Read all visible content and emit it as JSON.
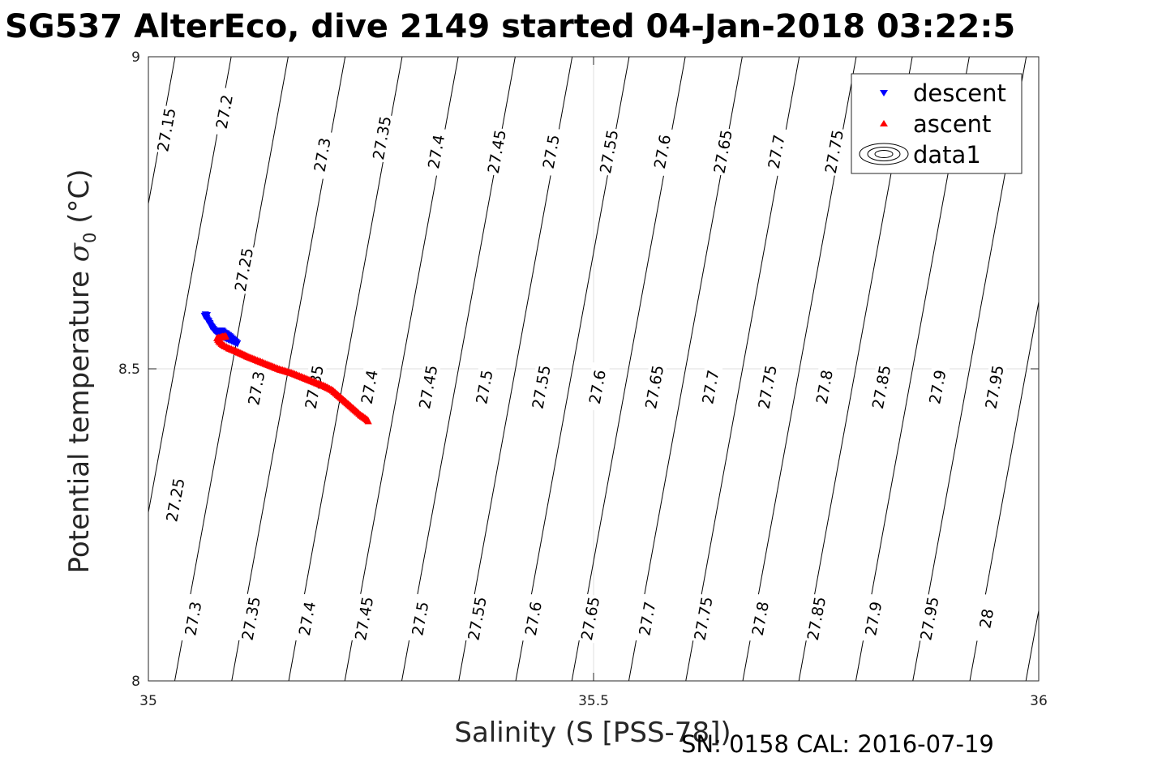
{
  "chart_data": {
    "type": "scatter",
    "title": "SG537 AlterEco, dive 2149 started 04-Jan-2018 03:22:5",
    "xlabel": "Salinity (S [PSS-78])",
    "ylabel_main": "Potential temperature ",
    "ylabel_sigma": "σ",
    "ylabel_sub": "0",
    "ylabel_unit": " (°C)",
    "footer": "SN: 0158  CAL: 2016-07-19",
    "xlim": [
      35,
      36
    ],
    "ylim": [
      8,
      9
    ],
    "xticks": [
      35,
      35.5,
      36
    ],
    "xtick_labels": [
      "35",
      "35.5",
      "36"
    ],
    "yticks": [
      8,
      8.5,
      9
    ],
    "ytick_labels": [
      "8",
      "8.5",
      "9"
    ],
    "grid": true,
    "legend": {
      "position": "top-right",
      "entries": [
        {
          "label": "descent",
          "marker": "triangle-down",
          "color": "#0000ff"
        },
        {
          "label": "ascent",
          "marker": "triangle-up",
          "color": "#ff0000"
        },
        {
          "label": "data1",
          "marker": "contour",
          "color": "#000000"
        }
      ]
    },
    "contour_lines": [
      {
        "sigma": "27.15",
        "x_at_9": 35.03
      },
      {
        "sigma": "27.2",
        "x_at_9": 35.093
      },
      {
        "sigma": "27.25",
        "x_at_9": 35.157
      },
      {
        "sigma": "27.3",
        "x_at_9": 35.221
      },
      {
        "sigma": "27.35",
        "x_at_9": 35.285
      },
      {
        "sigma": "27.4",
        "x_at_9": 35.348
      },
      {
        "sigma": "27.45",
        "x_at_9": 35.412
      },
      {
        "sigma": "27.5",
        "x_at_9": 35.476
      },
      {
        "sigma": "27.55",
        "x_at_9": 35.54
      },
      {
        "sigma": "27.6",
        "x_at_9": 35.603
      },
      {
        "sigma": "27.65",
        "x_at_9": 35.667
      },
      {
        "sigma": "27.7",
        "x_at_9": 35.731
      },
      {
        "sigma": "27.75",
        "x_at_9": 35.795
      },
      {
        "sigma": "27.8",
        "x_at_9": 35.858
      },
      {
        "sigma": "27.85",
        "x_at_9": 35.922
      },
      {
        "sigma": "27.9",
        "x_at_9": 35.986
      },
      {
        "sigma": "27.95",
        "x_at_9": 36.05
      },
      {
        "sigma": "28",
        "x_at_9": 36.113
      },
      {
        "sigma": "28.05",
        "x_at_9": 36.177
      }
    ],
    "contour_labels": [
      {
        "text": "27.15",
        "x": 35.02,
        "y": 8.883
      },
      {
        "text": "27.2",
        "x": 35.085,
        "y": 8.912
      },
      {
        "text": "27.25",
        "x": 35.107,
        "y": 8.659
      },
      {
        "text": "27.3",
        "x": 35.195,
        "y": 8.843
      },
      {
        "text": "27.35",
        "x": 35.262,
        "y": 8.87
      },
      {
        "text": "27.4",
        "x": 35.323,
        "y": 8.848
      },
      {
        "text": "27.45",
        "x": 35.391,
        "y": 8.848
      },
      {
        "text": "27.5",
        "x": 35.452,
        "y": 8.848
      },
      {
        "text": "27.55",
        "x": 35.517,
        "y": 8.848
      },
      {
        "text": "27.6",
        "x": 35.577,
        "y": 8.848
      },
      {
        "text": "27.65",
        "x": 35.645,
        "y": 8.848
      },
      {
        "text": "27.7",
        "x": 35.705,
        "y": 8.848
      },
      {
        "text": "27.75",
        "x": 35.77,
        "y": 8.848
      },
      {
        "text": "27.3",
        "x": 35.121,
        "y": 8.469
      },
      {
        "text": "27.35",
        "x": 35.186,
        "y": 8.471
      },
      {
        "text": "27.4",
        "x": 35.248,
        "y": 8.471
      },
      {
        "text": "27.45",
        "x": 35.314,
        "y": 8.471
      },
      {
        "text": "27.5",
        "x": 35.377,
        "y": 8.471
      },
      {
        "text": "27.55",
        "x": 35.441,
        "y": 8.471
      },
      {
        "text": "27.6",
        "x": 35.504,
        "y": 8.471
      },
      {
        "text": "27.65",
        "x": 35.568,
        "y": 8.471
      },
      {
        "text": "27.7",
        "x": 35.631,
        "y": 8.471
      },
      {
        "text": "27.75",
        "x": 35.695,
        "y": 8.471
      },
      {
        "text": "27.8",
        "x": 35.759,
        "y": 8.471
      },
      {
        "text": "27.85",
        "x": 35.823,
        "y": 8.471
      },
      {
        "text": "27.9",
        "x": 35.886,
        "y": 8.471
      },
      {
        "text": "27.95",
        "x": 35.95,
        "y": 8.471
      },
      {
        "text": "27.25",
        "x": 35.03,
        "y": 8.29
      },
      {
        "text": "27.3",
        "x": 35.05,
        "y": 8.1
      },
      {
        "text": "27.35",
        "x": 35.115,
        "y": 8.1
      },
      {
        "text": "27.4",
        "x": 35.178,
        "y": 8.1
      },
      {
        "text": "27.45",
        "x": 35.242,
        "y": 8.1
      },
      {
        "text": "27.5",
        "x": 35.305,
        "y": 8.1
      },
      {
        "text": "27.55",
        "x": 35.369,
        "y": 8.1
      },
      {
        "text": "27.6",
        "x": 35.432,
        "y": 8.1
      },
      {
        "text": "27.65",
        "x": 35.496,
        "y": 8.1
      },
      {
        "text": "27.7",
        "x": 35.56,
        "y": 8.1
      },
      {
        "text": "27.75",
        "x": 35.623,
        "y": 8.1
      },
      {
        "text": "27.8",
        "x": 35.687,
        "y": 8.1
      },
      {
        "text": "27.85",
        "x": 35.75,
        "y": 8.1
      },
      {
        "text": "27.9",
        "x": 35.814,
        "y": 8.1
      },
      {
        "text": "27.95",
        "x": 35.877,
        "y": 8.1
      },
      {
        "text": "28",
        "x": 35.941,
        "y": 8.1
      }
    ],
    "series": [
      {
        "name": "descent",
        "color": "#0000ff",
        "marker": "triangle-down",
        "points": [
          [
            35.063,
            8.584
          ],
          [
            35.064,
            8.586
          ],
          [
            35.066,
            8.585
          ],
          [
            35.065,
            8.582
          ],
          [
            35.066,
            8.578
          ],
          [
            35.068,
            8.575
          ],
          [
            35.069,
            8.572
          ],
          [
            35.07,
            8.568
          ],
          [
            35.072,
            8.565
          ],
          [
            35.074,
            8.561
          ],
          [
            35.077,
            8.558
          ],
          [
            35.08,
            8.56
          ],
          [
            35.083,
            8.56
          ],
          [
            35.085,
            8.557
          ],
          [
            35.09,
            8.553
          ],
          [
            35.1,
            8.54
          ],
          [
            35.078,
            8.554
          ],
          [
            35.087,
            8.556
          ]
        ]
      },
      {
        "name": "ascent",
        "color": "#ff0000",
        "marker": "triangle-up",
        "points": [
          [
            35.083,
            8.552
          ],
          [
            35.087,
            8.553
          ],
          [
            35.077,
            8.55
          ],
          [
            35.079,
            8.545
          ],
          [
            35.082,
            8.541
          ],
          [
            35.086,
            8.537
          ],
          [
            35.09,
            8.534
          ],
          [
            35.095,
            8.531
          ],
          [
            35.1,
            8.528
          ],
          [
            35.106,
            8.524
          ],
          [
            35.112,
            8.52
          ],
          [
            35.119,
            8.516
          ],
          [
            35.126,
            8.512
          ],
          [
            35.133,
            8.508
          ],
          [
            35.14,
            8.504
          ],
          [
            35.147,
            8.5
          ],
          [
            35.154,
            8.497
          ],
          [
            35.161,
            8.494
          ],
          [
            35.168,
            8.49
          ],
          [
            35.175,
            8.486
          ],
          [
            35.182,
            8.482
          ],
          [
            35.189,
            8.478
          ],
          [
            35.196,
            8.474
          ],
          [
            35.202,
            8.47
          ],
          [
            35.207,
            8.466
          ],
          [
            35.211,
            8.461
          ],
          [
            35.215,
            8.456
          ],
          [
            35.219,
            8.451
          ],
          [
            35.223,
            8.446
          ],
          [
            35.227,
            8.441
          ],
          [
            35.231,
            8.436
          ],
          [
            35.235,
            8.431
          ],
          [
            35.238,
            8.427
          ],
          [
            35.242,
            8.423
          ],
          [
            35.245,
            8.42
          ],
          [
            35.247,
            8.417
          ]
        ]
      }
    ]
  }
}
